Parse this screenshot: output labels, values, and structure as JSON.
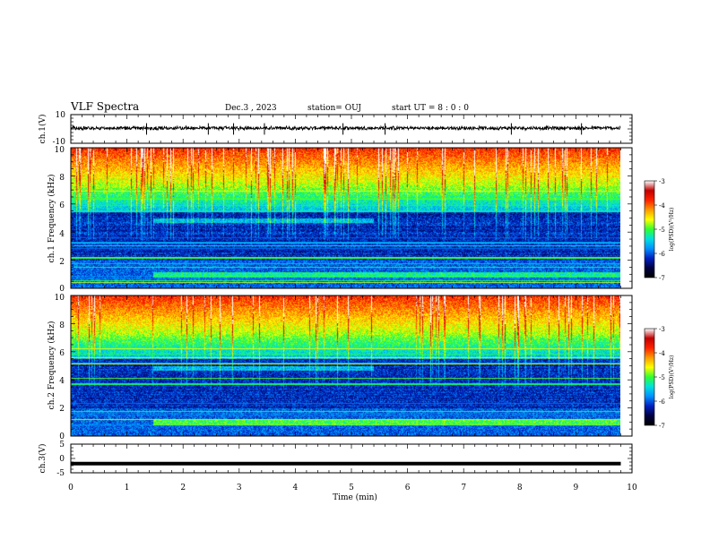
{
  "header": {
    "title": "VLF Spectra",
    "date": "Dec.3 , 2023",
    "station": "station= OUJ",
    "start": "start UT = 8 : 0 : 0"
  },
  "colorbar": {
    "label": "log(PSD)(V²/Hz)",
    "ticks": [
      "-3",
      "-4",
      "-5",
      "-6",
      "-7"
    ],
    "stops": [
      "#ffffff",
      "#c00000",
      "#ff2000",
      "#ff9a00",
      "#ffff00",
      "#30ff30",
      "#00e0e0",
      "#0090ff",
      "#0020c0",
      "#000040",
      "#000000"
    ]
  },
  "chart_data": [
    {
      "type": "line",
      "panel": "ch1-waveform",
      "ylabel": "ch.1(V)",
      "ylim": [
        -10,
        10
      ],
      "yticks": [
        "10",
        "-10"
      ],
      "xlim": [
        0,
        10
      ],
      "series": [
        {
          "baseline": 0.6,
          "typical_amplitude": 1.2,
          "max_spike": 4
        }
      ]
    },
    {
      "type": "heatmap",
      "panel": "ch1-spectrogram",
      "ylabel": "ch.1 Frequency (kHz)",
      "ylim": [
        0,
        10
      ],
      "yticks": [
        "0",
        "2",
        "4",
        "6",
        "8",
        "10"
      ],
      "xlim": [
        0,
        9.8
      ],
      "zlabel": "log(PSD)(V²/Hz)",
      "zlim": [
        -7,
        -3
      ]
    },
    {
      "type": "heatmap",
      "panel": "ch2-spectrogram",
      "ylabel": "ch.2 Frequency (kHz)",
      "ylim": [
        0,
        10
      ],
      "yticks": [
        "0",
        "2",
        "4",
        "6",
        "8",
        "10"
      ],
      "xlim": [
        0,
        9.8
      ],
      "zlabel": "log(PSD)(V²/Hz)",
      "zlim": [
        -7,
        -3
      ]
    },
    {
      "type": "line",
      "panel": "ch3-waveform",
      "ylabel": "ch.3(V)",
      "ylim": [
        -5,
        5
      ],
      "yticks": [
        "5",
        "0",
        "-5"
      ],
      "xlim": [
        0,
        10
      ],
      "series": [
        {
          "constant_value": -1.8
        }
      ]
    }
  ],
  "xaxis": {
    "label": "Time (min)",
    "ticks": [
      "0",
      "1",
      "2",
      "3",
      "4",
      "5",
      "6",
      "7",
      "8",
      "9",
      "10"
    ]
  }
}
